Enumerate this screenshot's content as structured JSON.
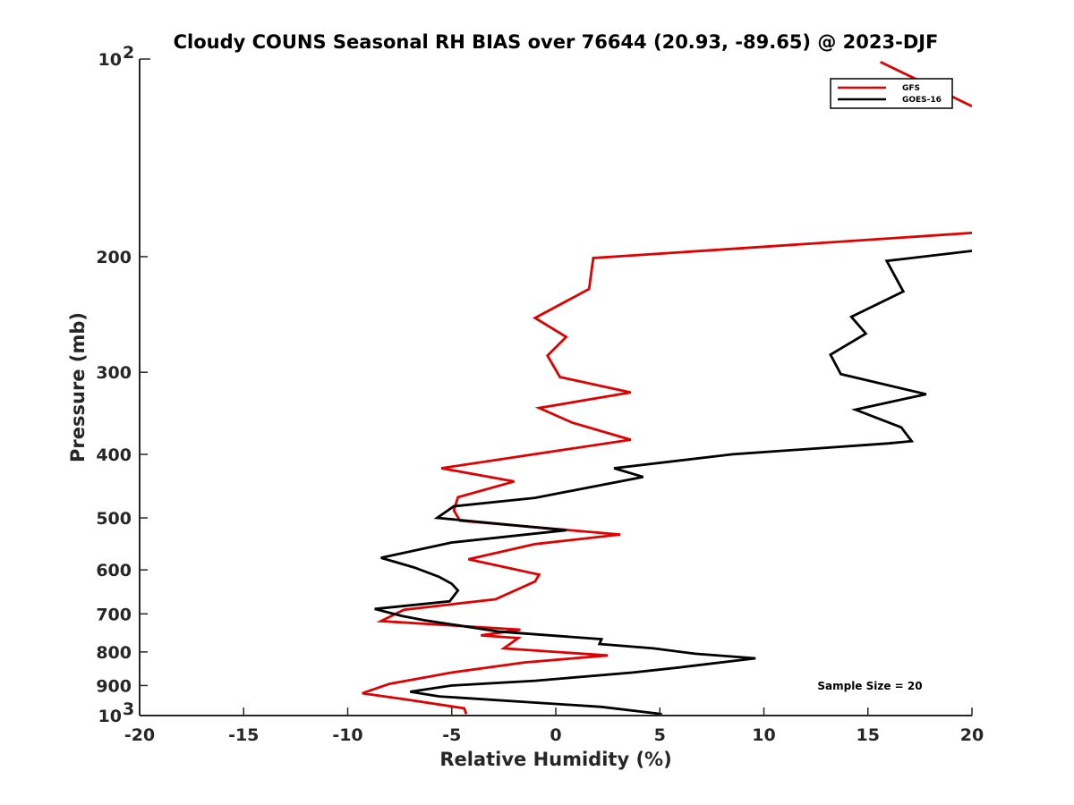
{
  "chart_data": {
    "type": "line",
    "title": "Cloudy COUNS Seasonal RH BIAS over 76644 (20.93, -89.65) @ 2023-DJF",
    "xlabel": "Relative Humidity (%)",
    "ylabel": "Pressure (mb)",
    "xlim": [
      -20,
      20
    ],
    "ylim": [
      100,
      1000
    ],
    "yscale": "log",
    "y_reversed": true,
    "grid": false,
    "x_ticks": [
      "-20",
      "-15",
      "-10",
      "-5",
      "0",
      "5",
      "10",
      "15",
      "20"
    ],
    "y_ticks": [
      {
        "value": 200,
        "label": "200"
      },
      {
        "value": 300,
        "label": "300"
      },
      {
        "value": 400,
        "label": "400"
      },
      {
        "value": 500,
        "label": "500"
      },
      {
        "value": 600,
        "label": "600"
      },
      {
        "value": 700,
        "label": "700"
      },
      {
        "value": 800,
        "label": "800"
      },
      {
        "value": 900,
        "label": "900"
      }
    ],
    "y_decade_ticks": [
      {
        "value": 100,
        "base": "10",
        "exp": "2"
      },
      {
        "value": 1000,
        "base": "10",
        "exp": "3"
      }
    ],
    "legend_position": "top-right",
    "series": [
      {
        "name": "GFS",
        "color": "#e00000",
        "points": [
          [
            -4.3,
            995
          ],
          [
            -4.4,
            975
          ],
          [
            -7.2,
            945
          ],
          [
            -9.3,
            925
          ],
          [
            -8.0,
            895
          ],
          [
            -5.0,
            860
          ],
          [
            -1.5,
            830
          ],
          [
            2.5,
            810
          ],
          [
            -2.5,
            790
          ],
          [
            -1.8,
            762
          ],
          [
            -3.6,
            755
          ],
          [
            -1.7,
            740
          ],
          [
            -8.4,
            718
          ],
          [
            -7.3,
            690
          ],
          [
            -2.9,
            665
          ],
          [
            -1.0,
            625
          ],
          [
            -0.8,
            610
          ],
          [
            -4.2,
            578
          ],
          [
            -1.0,
            548
          ],
          [
            3.1,
            530
          ],
          [
            -4.6,
            505
          ],
          [
            -4.9,
            487
          ],
          [
            -4.7,
            465
          ],
          [
            -2.0,
            440
          ],
          [
            -5.5,
            420
          ],
          [
            3.6,
            380
          ],
          [
            0.8,
            358
          ],
          [
            -0.8,
            340
          ],
          [
            3.6,
            322
          ],
          [
            0.2,
            305
          ],
          [
            -0.4,
            283
          ],
          [
            0.5,
            265
          ],
          [
            -1.0,
            248
          ],
          [
            1.6,
            224
          ],
          [
            1.8,
            201
          ],
          [
            20.0,
            184
          ]
        ]
      },
      {
        "name": "GOES-16",
        "color": "#000000",
        "points": [
          [
            5.1,
            995
          ],
          [
            2.2,
            970
          ],
          [
            -5.6,
            935
          ],
          [
            -7.0,
            920
          ],
          [
            -5.0,
            900
          ],
          [
            -1.0,
            885
          ],
          [
            3.7,
            860
          ],
          [
            5.9,
            845
          ],
          [
            9.6,
            818
          ],
          [
            6.7,
            805
          ],
          [
            4.7,
            790
          ],
          [
            2.1,
            778
          ],
          [
            2.2,
            765
          ],
          [
            -2.7,
            745
          ],
          [
            -6.3,
            716
          ],
          [
            -7.4,
            705
          ],
          [
            -8.7,
            688
          ],
          [
            -5.1,
            670
          ],
          [
            -4.7,
            645
          ],
          [
            -5.0,
            630
          ],
          [
            -5.6,
            615
          ],
          [
            -6.8,
            595
          ],
          [
            -8.4,
            575
          ],
          [
            -5.0,
            545
          ],
          [
            0.5,
            522
          ],
          [
            -5.7,
            500
          ],
          [
            -4.9,
            480
          ],
          [
            -1.0,
            466
          ],
          [
            4.2,
            433
          ],
          [
            2.8,
            420
          ],
          [
            8.5,
            400
          ],
          [
            16.0,
            385
          ],
          [
            17.1,
            382
          ],
          [
            16.6,
            364
          ],
          [
            14.4,
            342
          ],
          [
            17.8,
            324
          ],
          [
            13.7,
            302
          ],
          [
            13.2,
            282
          ],
          [
            14.9,
            262
          ],
          [
            14.2,
            247
          ],
          [
            16.7,
            226
          ],
          [
            15.9,
            203
          ],
          [
            20.0,
            196
          ]
        ]
      },
      {
        "name": "GFS",
        "color": "#e00000",
        "points": [
          [
            15.6,
            101
          ],
          [
            20.0,
            118
          ]
        ]
      }
    ],
    "legend": [
      {
        "label": "GFS",
        "color": "#e00000"
      },
      {
        "label": "GOES-16",
        "color": "#000000"
      }
    ],
    "annotation": "Sample Size = 20"
  }
}
